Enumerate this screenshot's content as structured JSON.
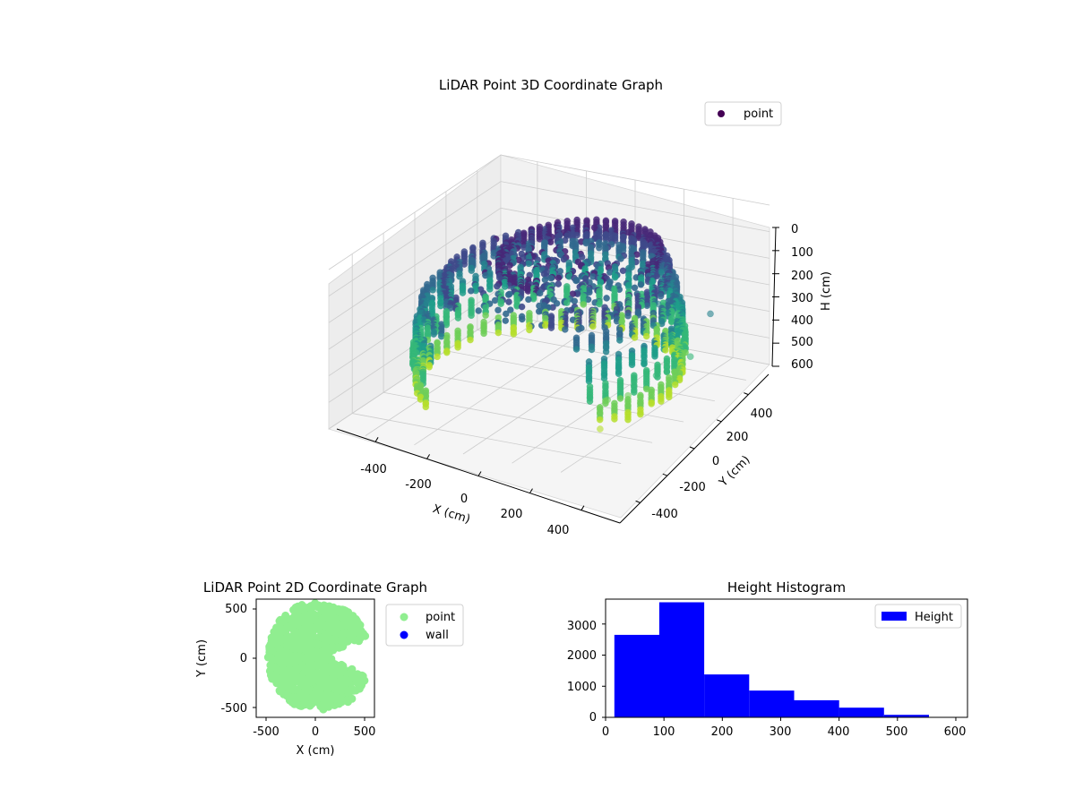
{
  "figure": {
    "background": "#ffffff"
  },
  "colors": {
    "viridis": [
      "#440154",
      "#482878",
      "#3e4989",
      "#31688e",
      "#26828e",
      "#1f9e89",
      "#35b779",
      "#6ece58",
      "#b5de2b",
      "#fde725"
    ],
    "point_2d": "#90ee90",
    "wall": "#0000ff",
    "histogram": "#0000ff",
    "grid": "#cccccc",
    "pane": "#f2f2f2"
  },
  "chart_data": [
    {
      "type": "scatter3d",
      "title": "LiDAR Point 3D Coordinate Graph",
      "xlabel": "X (cm)",
      "ylabel": "Y (cm)",
      "zlabel": "H (cm)",
      "xlim": [
        -550,
        550
      ],
      "ylim": [
        -550,
        550
      ],
      "zlim": [
        0,
        620
      ],
      "z_inverted": true,
      "xticks": [
        "-400",
        "-200",
        "0",
        "200",
        "400"
      ],
      "yticks": [
        "-400",
        "-200",
        "0",
        "200",
        "400"
      ],
      "zticks": [
        "0",
        "100",
        "200",
        "300",
        "400",
        "500",
        "600"
      ],
      "legend": {
        "label": "point",
        "placement": "upper-right"
      },
      "colormap": "viridis",
      "grid": true,
      "rings": [
        {
          "h": 80,
          "r": 280,
          "cx": 100,
          "cy": 40,
          "start": 0,
          "sweep": 270
        },
        {
          "h": 150,
          "r": 390,
          "cx": 30,
          "cy": 0,
          "start": -60,
          "sweep": 300
        },
        {
          "h": 230,
          "r": 440,
          "cx": 0,
          "cy": 0,
          "start": -45,
          "sweep": 290
        },
        {
          "h": 320,
          "r": 460,
          "cx": 0,
          "cy": 0,
          "start": -40,
          "sweep": 280
        },
        {
          "h": 410,
          "r": 470,
          "cx": 0,
          "cy": 0,
          "start": -40,
          "sweep": 275
        },
        {
          "h": 500,
          "r": 460,
          "cx": 0,
          "cy": 0,
          "start": -35,
          "sweep": 270
        }
      ],
      "outliers": [
        {
          "x": 450,
          "y": 100,
          "h": 350
        },
        {
          "x": 470,
          "y": -50,
          "h": 420
        },
        {
          "x": 500,
          "y": 250,
          "h": 300
        },
        {
          "x": 380,
          "y": -220,
          "h": 460
        },
        {
          "x": 420,
          "y": -330,
          "h": 520
        },
        {
          "x": 540,
          "y": 60,
          "h": 380
        },
        {
          "x": 350,
          "y": 150,
          "h": 250
        },
        {
          "x": 400,
          "y": -120,
          "h": 480
        }
      ]
    },
    {
      "type": "scatter",
      "title": "LiDAR Point 2D Coordinate Graph",
      "xlabel": "X (cm)",
      "ylabel": "Y (cm)",
      "xlim": [
        -600,
        600
      ],
      "ylim": [
        -600,
        600
      ],
      "xticks": [
        "-500",
        "0",
        "500"
      ],
      "yticks": [
        "-500",
        "0",
        "500"
      ],
      "legend": {
        "entries": [
          "point",
          "wall"
        ],
        "placement": "outside-right"
      },
      "point_region": {
        "radius": 550,
        "notch_start_deg": -18,
        "notch_end_deg": 18,
        "notch_depth": 400
      }
    },
    {
      "type": "bar",
      "title": "Height Histogram",
      "legend": {
        "label": "Height",
        "placement": "upper-right"
      },
      "xlim": [
        0,
        620
      ],
      "ylim": [
        0,
        3800
      ],
      "xticks": [
        "0",
        "100",
        "200",
        "300",
        "400",
        "500",
        "600"
      ],
      "yticks": [
        "0",
        "1000",
        "2000",
        "3000"
      ],
      "bins": [
        {
          "start": 15,
          "end": 92,
          "count": 2650
        },
        {
          "start": 92,
          "end": 169,
          "count": 3700
        },
        {
          "start": 169,
          "end": 246,
          "count": 1380
        },
        {
          "start": 246,
          "end": 323,
          "count": 860
        },
        {
          "start": 323,
          "end": 400,
          "count": 550
        },
        {
          "start": 400,
          "end": 477,
          "count": 310
        },
        {
          "start": 477,
          "end": 554,
          "count": 80
        },
        {
          "start": 554,
          "end": 600,
          "count": 8
        }
      ]
    }
  ]
}
